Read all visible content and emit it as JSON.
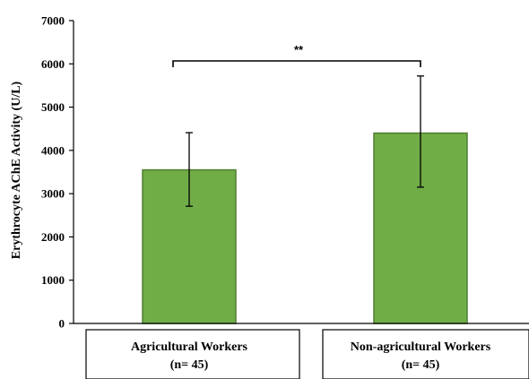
{
  "chart_data": {
    "type": "bar",
    "categories": [
      "Agricultural Workers (n= 45)",
      "Non-agricultural Workers (n= 45)"
    ],
    "category_lines": [
      [
        "Agricultural Workers",
        "(n= 45)"
      ],
      [
        "Non-agricultural Workers",
        "(n= 45)"
      ]
    ],
    "values": [
      3550,
      4400
    ],
    "error_low": [
      2710,
      3150
    ],
    "error_high": [
      4410,
      5720
    ],
    "ylabel": "Erythrocyte AChE Activity (U/L)",
    "xlabel": "",
    "ylim": [
      0,
      7000
    ],
    "yticks": [
      0,
      1000,
      2000,
      3000,
      4000,
      5000,
      6000,
      7000
    ],
    "significance": {
      "between": [
        0,
        1
      ],
      "label": "**"
    },
    "grid": false,
    "colors": {
      "bar_fill": "#70ad47",
      "bar_stroke": "#507e32",
      "axis": "#000000"
    }
  }
}
